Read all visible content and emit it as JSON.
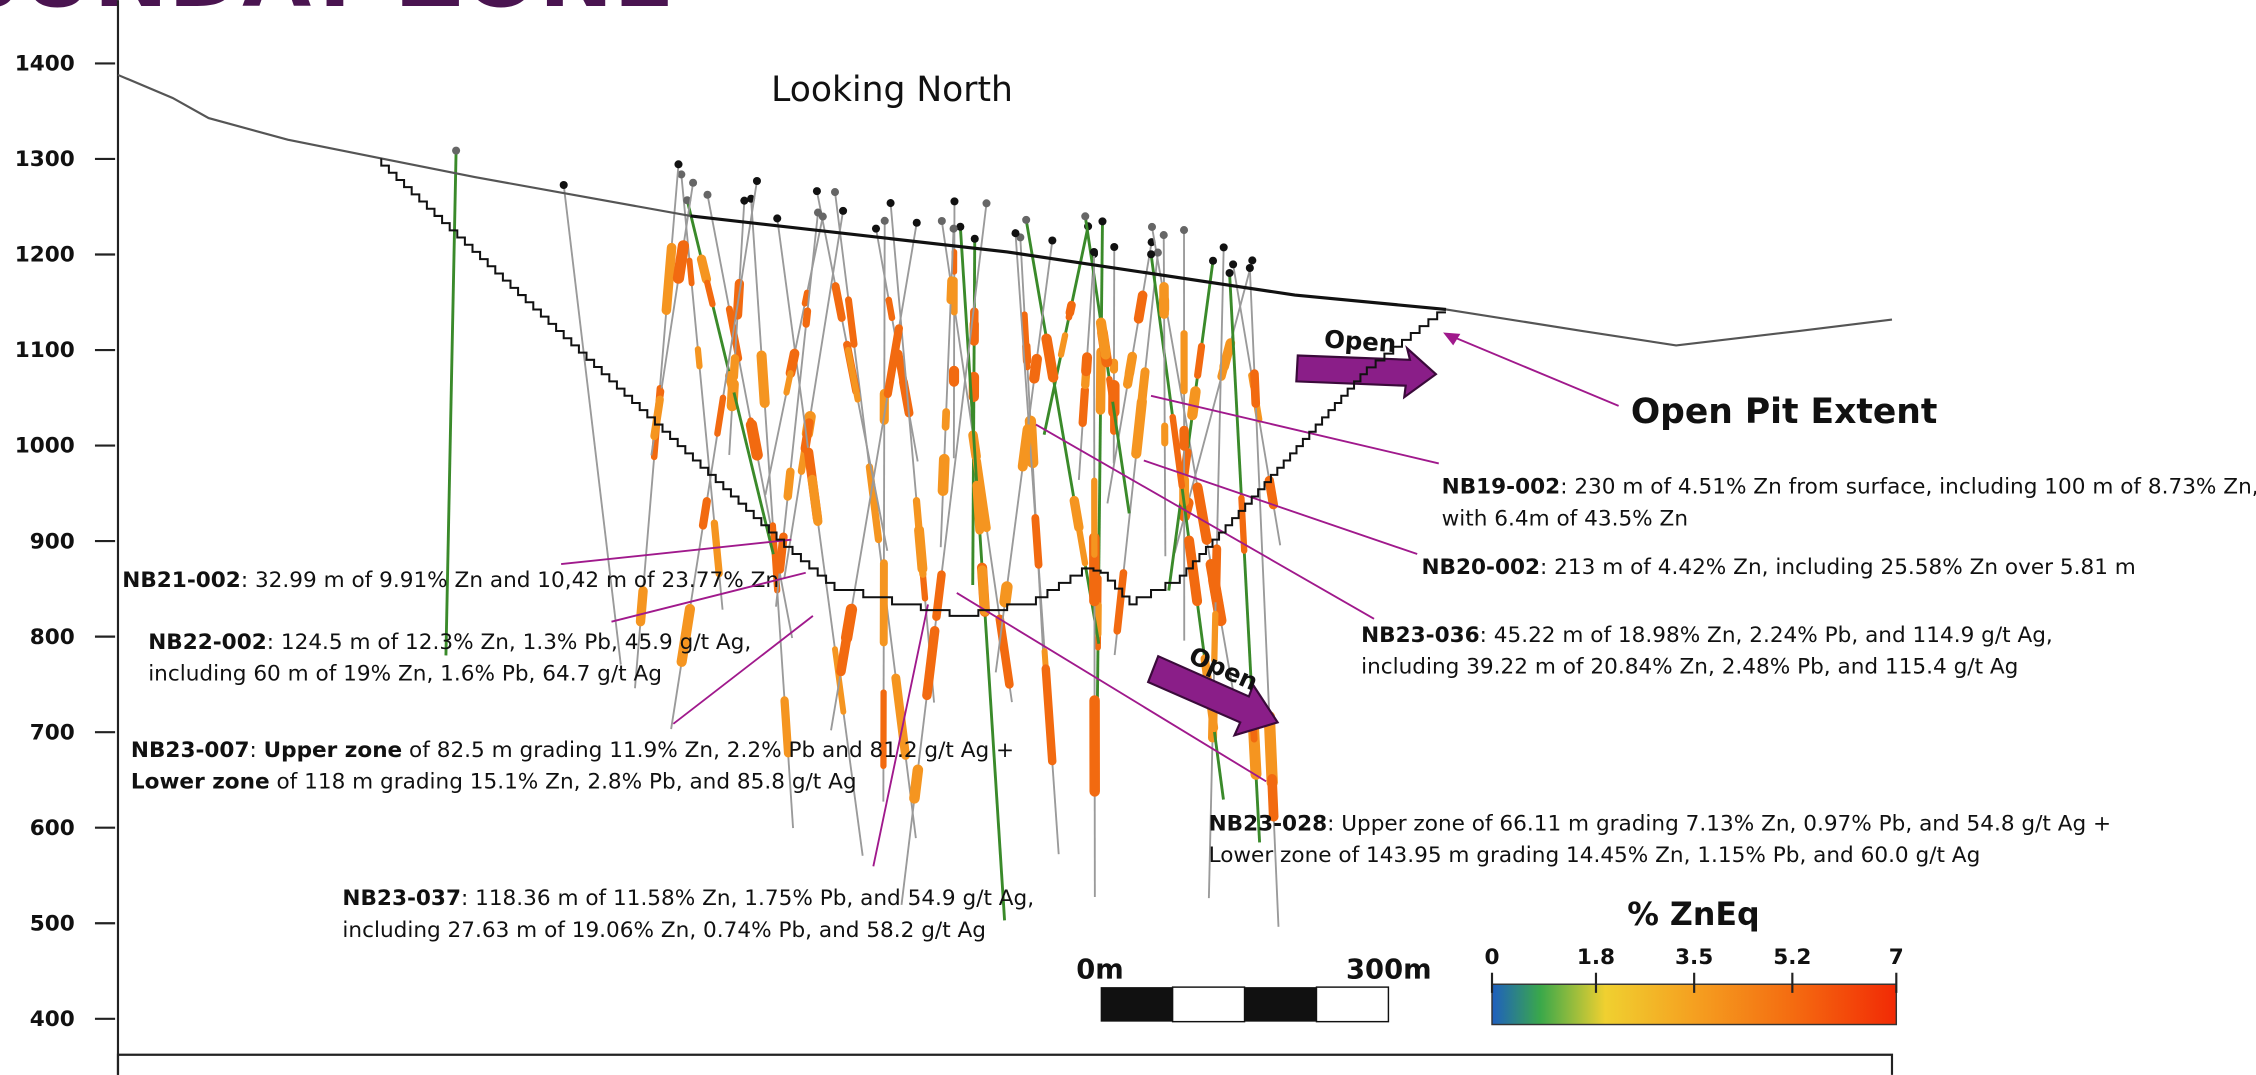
{
  "title": "SUNDAY ZONE",
  "view_label": "Looking North",
  "elevation_axis": {
    "ticks": [
      1400,
      1300,
      1200,
      1100,
      1000,
      900,
      800,
      700,
      600,
      500,
      400
    ],
    "range": [
      1400,
      400
    ]
  },
  "open_labels": [
    "Open",
    "Open"
  ],
  "pit_label": "Open Pit Extent",
  "annotations": [
    {
      "lines": [
        [
          {
            "text": "NB19-002",
            "bold": true
          },
          {
            "text": ": 230 m of 4.51% Zn from surface, including 100 m of 8.73% Zn,",
            "bold": false
          }
        ],
        [
          {
            "text": "with 6.4m of 43.5% Zn",
            "bold": false
          }
        ]
      ]
    },
    {
      "lines": [
        [
          {
            "text": "NB20-002",
            "bold": true
          },
          {
            "text": ": 213 m of 4.42% Zn, including 25.58% Zn over 5.81 m",
            "bold": false
          }
        ]
      ]
    },
    {
      "lines": [
        [
          {
            "text": "NB23-036",
            "bold": true
          },
          {
            "text": ": 45.22 m of 18.98% Zn, 2.24% Pb, and 114.9 g/t Ag,",
            "bold": false
          }
        ],
        [
          {
            "text": "including 39.22 m of 20.84% Zn, 2.48% Pb, and 115.4 g/t Ag",
            "bold": false
          }
        ]
      ]
    },
    {
      "lines": [
        [
          {
            "text": "NB23-028",
            "bold": true
          },
          {
            "text": ": Upper zone of 66.11 m grading 7.13% Zn, 0.97% Pb, and 54.8 g/t Ag +",
            "bold": false
          }
        ],
        [
          {
            "text": "Lower zone of 143.95 m grading 14.45% Zn, 1.15% Pb, and 60.0 g/t Ag",
            "bold": false
          }
        ]
      ]
    },
    {
      "lines": [
        [
          {
            "text": "NB21-002",
            "bold": true
          },
          {
            "text": ": 32.99 m of 9.91% Zn and 10,42 m of 23.77% Zn",
            "bold": false
          }
        ]
      ]
    },
    {
      "lines": [
        [
          {
            "text": "NB22-002",
            "bold": true
          },
          {
            "text": ": 124.5 m of 12.3% Zn, 1.3% Pb, 45.9 g/t Ag,",
            "bold": false
          }
        ],
        [
          {
            "text": "including 60 m of 19% Zn, 1.6% Pb, 64.7 g/t Ag",
            "bold": false
          }
        ]
      ]
    },
    {
      "lines": [
        [
          {
            "text": "NB23-007",
            "bold": true
          },
          {
            "text": ": ",
            "bold": false
          },
          {
            "text": "Upper zone",
            "bold": true
          },
          {
            "text": " of 82.5 m grading 11.9% Zn, 2.2% Pb and 81.2 g/t Ag +",
            "bold": false
          }
        ],
        [
          {
            "text": "Lower zone",
            "bold": true
          },
          {
            "text": " of 118 m grading 15.1% Zn, 2.8% Pb, and 85.8 g/t Ag",
            "bold": false
          }
        ]
      ]
    },
    {
      "lines": [
        [
          {
            "text": "NB23-037",
            "bold": true
          },
          {
            "text": ": 118.36 m of 11.58% Zn, 1.75% Pb, and 54.9 g/t Ag,",
            "bold": false
          }
        ],
        [
          {
            "text": "including 27.63 m of 19.06% Zn, 0.74% Pb, and 58.2 g/t Ag",
            "bold": false
          }
        ]
      ]
    }
  ],
  "scale_bar": {
    "start": "0m",
    "end": "300m"
  },
  "legend": {
    "title": "% ZnEq",
    "range": [
      0,
      7
    ],
    "ticks": [
      0,
      1.8,
      3.5,
      5.2,
      7
    ]
  }
}
